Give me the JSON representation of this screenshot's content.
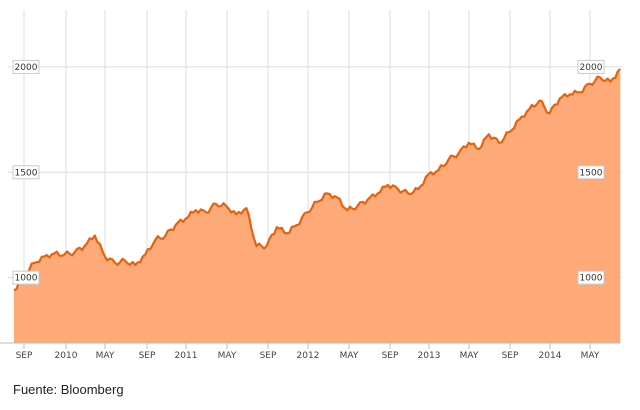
{
  "chart_data": {
    "type": "area",
    "x_ticks": [
      "SEP",
      "2010",
      "MAY",
      "SEP",
      "2011",
      "MAY",
      "SEP",
      "2012",
      "MAY",
      "SEP",
      "2013",
      "MAY",
      "SEP",
      "2014",
      "MAY"
    ],
    "y_ticks": [
      1000,
      1500,
      2000
    ],
    "ylim": [
      690,
      2270
    ],
    "grid": true,
    "colors": {
      "area": "#FDAA78",
      "line": "#E36410",
      "grid": "#dcdcdc"
    },
    "series": [
      {
        "x": [
          "2009-08",
          "2009-09",
          "2009-10",
          "2009-11",
          "2009-12",
          "2010-01",
          "2010-02",
          "2010-03",
          "2010-04",
          "2010-05",
          "2010-06",
          "2010-07",
          "2010-08",
          "2010-09",
          "2010-10",
          "2010-11",
          "2010-12",
          "2011-01",
          "2011-02",
          "2011-03",
          "2011-04",
          "2011-05",
          "2011-06",
          "2011-07",
          "2011-08",
          "2011-09",
          "2011-10",
          "2011-11",
          "2011-12",
          "2012-01",
          "2012-02",
          "2012-03",
          "2012-04",
          "2012-05",
          "2012-06",
          "2012-07",
          "2012-08",
          "2012-09",
          "2012-10",
          "2012-11",
          "2012-12",
          "2013-01",
          "2013-02",
          "2013-03",
          "2013-04",
          "2013-05",
          "2013-06",
          "2013-07",
          "2013-08",
          "2013-09",
          "2013-10",
          "2013-11",
          "2013-12",
          "2014-01",
          "2014-02",
          "2014-03",
          "2014-04",
          "2014-05",
          "2014-06",
          "2014-07",
          "2014-08"
        ],
        "values": [
          940,
          1010,
          1070,
          1100,
          1115,
          1110,
          1120,
          1150,
          1200,
          1100,
          1070,
          1080,
          1060,
          1110,
          1180,
          1200,
          1250,
          1280,
          1320,
          1310,
          1350,
          1340,
          1300,
          1330,
          1150,
          1150,
          1240,
          1210,
          1250,
          1310,
          1360,
          1400,
          1380,
          1320,
          1340,
          1370,
          1400,
          1440,
          1420,
          1400,
          1420,
          1490,
          1510,
          1560,
          1590,
          1640,
          1610,
          1680,
          1640,
          1690,
          1750,
          1800,
          1840,
          1780,
          1850,
          1870,
          1880,
          1920,
          1950,
          1930,
          1990
        ]
      }
    ]
  },
  "footer": {
    "source": "Fuente: Bloomberg"
  }
}
